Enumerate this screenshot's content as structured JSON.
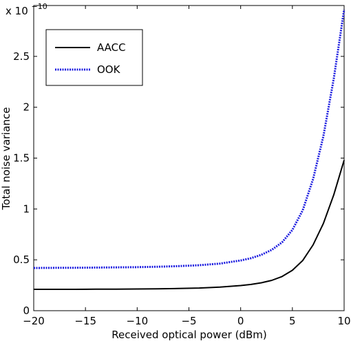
{
  "chart_data": {
    "type": "line",
    "title": "",
    "xlabel": "Received optical power (dBm)",
    "ylabel": "Total noise variance",
    "y_multiplier": {
      "base": "x 10",
      "exponent": "−10"
    },
    "xlim": [
      -20,
      10
    ],
    "ylim": [
      0,
      3.0
    ],
    "xticks": [
      -20,
      -15,
      -10,
      -5,
      0,
      5,
      10
    ],
    "xtick_labels": [
      "−20",
      "−15",
      "−10",
      "−5",
      "0",
      "5",
      "10"
    ],
    "yticks": [
      0,
      0.5,
      1,
      1.5,
      2,
      2.5
    ],
    "ytick_labels": [
      "0",
      "0.5",
      "1",
      "1.5",
      "2",
      "2.5"
    ],
    "grid": false,
    "legend_placement": "top-left",
    "x": [
      -20,
      -18,
      -16,
      -14,
      -12,
      -10,
      -8,
      -6,
      -4,
      -2,
      0,
      1,
      2,
      3,
      4,
      5,
      6,
      7,
      8,
      9,
      10
    ],
    "series": [
      {
        "name": "AACC",
        "color": "#000000",
        "style": "solid",
        "values": [
          0.21,
          0.21,
          0.21,
          0.211,
          0.212,
          0.213,
          0.215,
          0.218,
          0.223,
          0.232,
          0.247,
          0.258,
          0.274,
          0.298,
          0.336,
          0.397,
          0.494,
          0.647,
          0.858,
          1.14,
          1.48
        ]
      },
      {
        "name": "OOK",
        "color": "#1a1adf",
        "style": "dotted",
        "values": [
          0.42,
          0.421,
          0.422,
          0.424,
          0.426,
          0.428,
          0.432,
          0.438,
          0.447,
          0.463,
          0.494,
          0.516,
          0.549,
          0.598,
          0.672,
          0.794,
          0.988,
          1.294,
          1.716,
          2.283,
          2.96
        ]
      }
    ]
  }
}
